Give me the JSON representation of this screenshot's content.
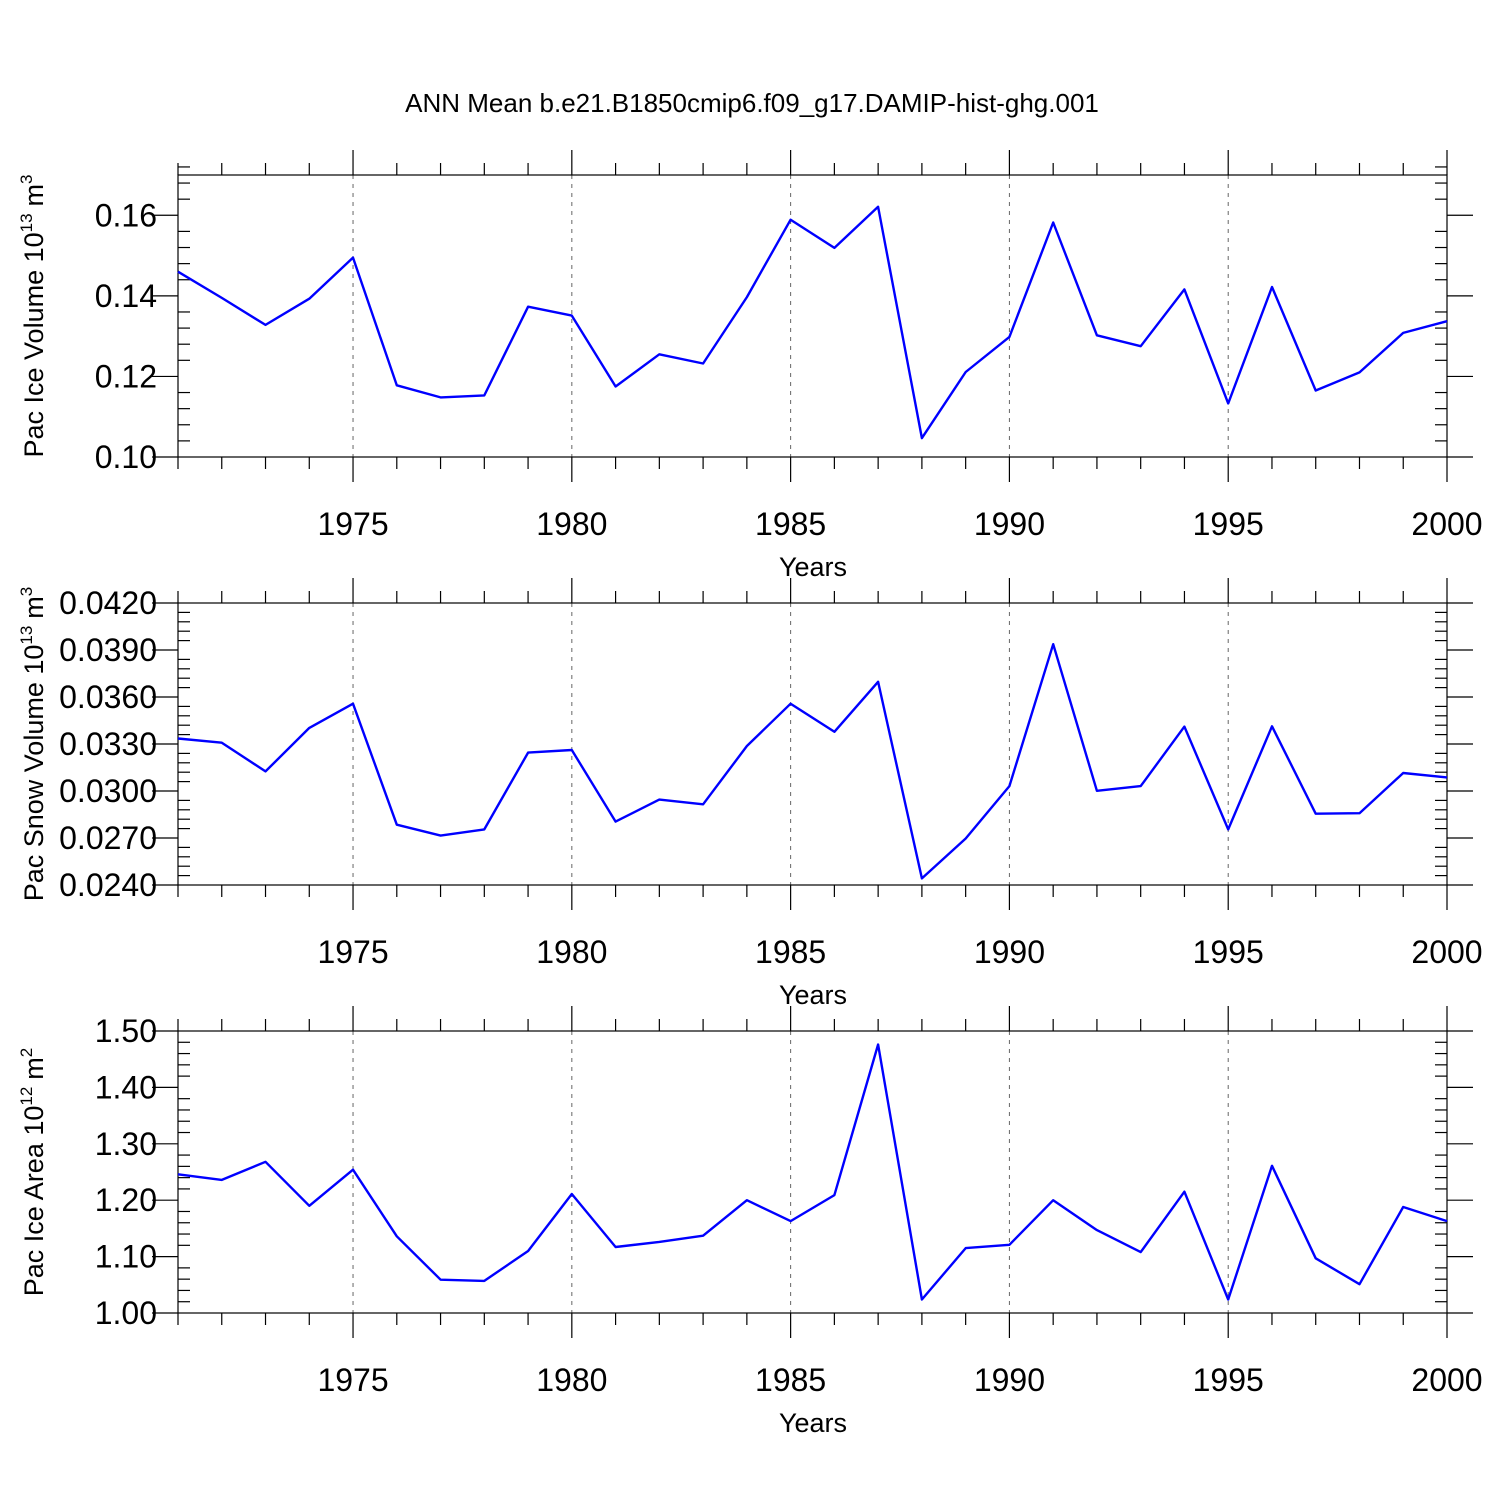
{
  "title": "ANN Mean b.e21.B1850cmip6.f09_g17.DAMIP-hist-ghg.001",
  "colors": {
    "line": "#0000ff",
    "axis": "#000000",
    "grid": "#666666"
  },
  "chart_data": [
    {
      "type": "line",
      "ylabel": "Pac Ice Volume 10",
      "ylabel_sup": "13",
      "ylabel_unit": "m",
      "ylabel_unit_sup": "3",
      "xlabel": "Years",
      "xlim": [
        1971,
        2000
      ],
      "ylim": [
        0.1,
        0.17
      ],
      "yticks": [
        0.1,
        0.12,
        0.14,
        0.16
      ],
      "ytick_labels": [
        "0.10",
        "0.12",
        "0.14",
        "0.16"
      ],
      "xticks": [
        1975,
        1980,
        1985,
        1990,
        1995,
        2000
      ],
      "xtick_labels": [
        "1975",
        "1980",
        "1985",
        "1990",
        "1995",
        "2000"
      ],
      "x": [
        1971,
        1972,
        1973,
        1974,
        1975,
        1976,
        1977,
        1978,
        1979,
        1980,
        1981,
        1982,
        1983,
        1984,
        1985,
        1986,
        1987,
        1988,
        1989,
        1990,
        1991,
        1992,
        1993,
        1994,
        1995,
        1996,
        1997,
        1998,
        1999,
        2000
      ],
      "values": [
        0.146,
        0.1395,
        0.1328,
        0.1393,
        0.1495,
        0.1178,
        0.1148,
        0.1153,
        0.1373,
        0.1351,
        0.1175,
        0.1255,
        0.1232,
        0.1397,
        0.1589,
        0.1519,
        0.1621,
        0.1047,
        0.1211,
        0.1298,
        0.1582,
        0.1302,
        0.1275,
        0.1416,
        0.1133,
        0.1422,
        0.1165,
        0.121,
        0.1308,
        0.1337
      ]
    },
    {
      "type": "line",
      "ylabel": "Pac Snow Volume 10",
      "ylabel_sup": "13",
      "ylabel_unit": "m",
      "ylabel_unit_sup": "3",
      "xlabel": "Years",
      "xlim": [
        1971,
        2000
      ],
      "ylim": [
        0.024,
        0.042
      ],
      "yticks": [
        0.024,
        0.027,
        0.03,
        0.033,
        0.036,
        0.039,
        0.042
      ],
      "ytick_labels": [
        "0.0240",
        "0.0270",
        "0.0300",
        "0.0330",
        "0.0360",
        "0.0390",
        "0.0420"
      ],
      "xticks": [
        1975,
        1980,
        1985,
        1990,
        1995,
        2000
      ],
      "xtick_labels": [
        "1975",
        "1980",
        "1985",
        "1990",
        "1995",
        "2000"
      ],
      "x": [
        1971,
        1972,
        1973,
        1974,
        1975,
        1976,
        1977,
        1978,
        1979,
        1980,
        1981,
        1982,
        1983,
        1984,
        1985,
        1986,
        1987,
        1988,
        1989,
        1990,
        1991,
        1992,
        1993,
        1994,
        1995,
        1996,
        1997,
        1998,
        1999,
        2000
      ],
      "values": [
        0.03335,
        0.03308,
        0.03125,
        0.03403,
        0.03557,
        0.02785,
        0.02715,
        0.02755,
        0.03245,
        0.03262,
        0.02805,
        0.02945,
        0.02915,
        0.03287,
        0.03557,
        0.03378,
        0.03697,
        0.02442,
        0.02697,
        0.03031,
        0.03937,
        0.03001,
        0.03031,
        0.03411,
        0.02755,
        0.03413,
        0.02855,
        0.02858,
        0.03115,
        0.03087
      ]
    },
    {
      "type": "line",
      "ylabel": "Pac Ice Area 10",
      "ylabel_sup": "12",
      "ylabel_unit": "m",
      "ylabel_unit_sup": "2",
      "xlabel": "Years",
      "xlim": [
        1971,
        2000
      ],
      "ylim": [
        1.0,
        1.5
      ],
      "yticks": [
        1.0,
        1.1,
        1.2,
        1.3,
        1.4,
        1.5
      ],
      "ytick_labels": [
        "1.00",
        "1.10",
        "1.20",
        "1.30",
        "1.40",
        "1.50"
      ],
      "xticks": [
        1975,
        1980,
        1985,
        1990,
        1995,
        2000
      ],
      "xtick_labels": [
        "1975",
        "1980",
        "1985",
        "1990",
        "1995",
        "2000"
      ],
      "x": [
        1971,
        1972,
        1973,
        1974,
        1975,
        1976,
        1977,
        1978,
        1979,
        1980,
        1981,
        1982,
        1983,
        1984,
        1985,
        1986,
        1987,
        1988,
        1989,
        1990,
        1991,
        1992,
        1993,
        1994,
        1995,
        1996,
        1997,
        1998,
        1999,
        2000
      ],
      "values": [
        1.246,
        1.236,
        1.268,
        1.19,
        1.254,
        1.136,
        1.059,
        1.057,
        1.11,
        1.211,
        1.117,
        1.126,
        1.137,
        1.2,
        1.163,
        1.209,
        1.476,
        1.024,
        1.115,
        1.121,
        1.2,
        1.147,
        1.108,
        1.215,
        1.024,
        1.261,
        1.097,
        1.051,
        1.188,
        1.163
      ]
    }
  ]
}
